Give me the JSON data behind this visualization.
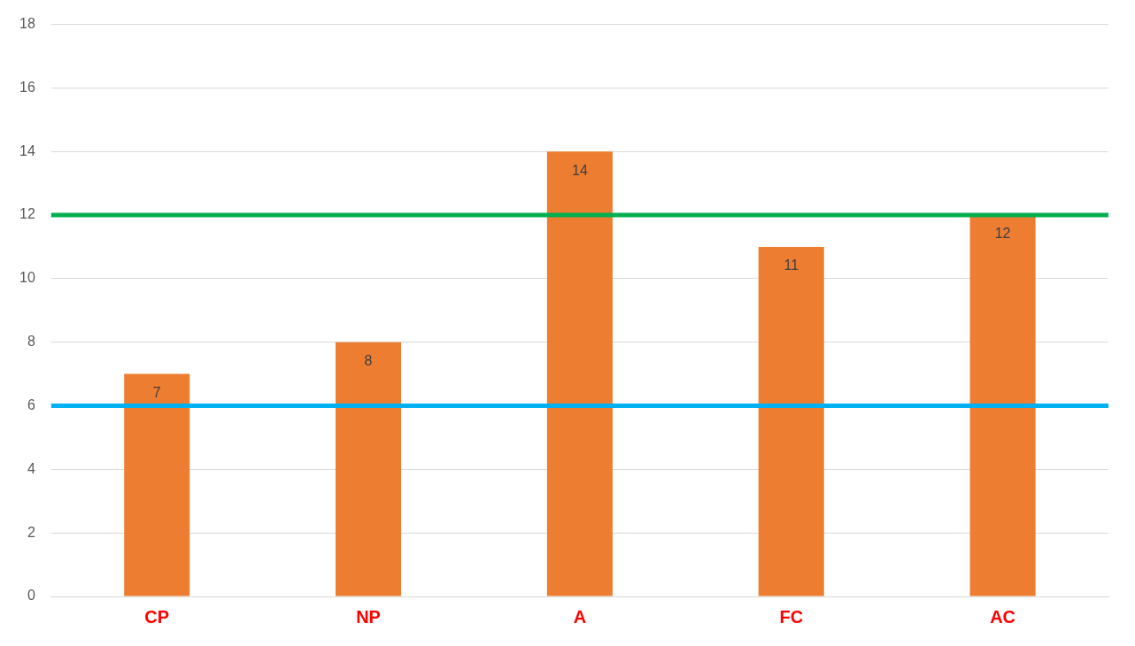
{
  "chart_data": {
    "type": "bar",
    "categories": [
      "CP",
      "NP",
      "A",
      "FC",
      "AC"
    ],
    "values": [
      7,
      8,
      14,
      11,
      12
    ],
    "color": "#ed7d31",
    "ylim": [
      0,
      18
    ],
    "yticks": [
      0,
      2,
      4,
      6,
      8,
      10,
      12,
      14,
      16,
      18
    ],
    "grid": "y",
    "legend": false,
    "data_labels": true,
    "ref_lines": [
      {
        "axis": "y",
        "value": 12,
        "color": "#00b050"
      },
      {
        "axis": "y",
        "value": 6,
        "color": "#00b0f0"
      }
    ]
  }
}
